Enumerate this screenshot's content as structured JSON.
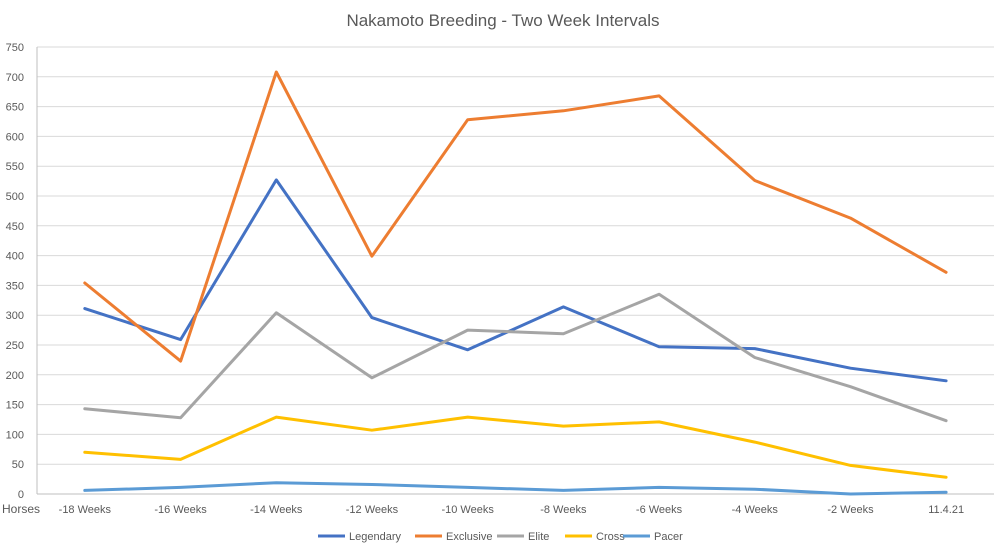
{
  "chart_data": {
    "type": "line",
    "title": "Nakamoto Breeding - Two Week Intervals",
    "xlabel": "Horses",
    "ylabel": "",
    "ylim": [
      0,
      750
    ],
    "yticks": [
      0,
      50,
      100,
      150,
      200,
      250,
      300,
      350,
      400,
      450,
      500,
      550,
      600,
      650,
      700,
      750
    ],
    "grid": true,
    "legend_position": "bottom",
    "categories": [
      "-18 Weeks",
      "-16 Weeks",
      "-14 Weeks",
      "-12 Weeks",
      "-10 Weeks",
      "-8 Weeks",
      "-6 Weeks",
      "-4 Weeks",
      "-2 Weeks",
      "11.4.21"
    ],
    "series": [
      {
        "name": "Legendary",
        "color": "#4472c4",
        "values": [
          311,
          259,
          527,
          296,
          242,
          314,
          247,
          244,
          211,
          190
        ]
      },
      {
        "name": "Exclusive",
        "color": "#ed7d31",
        "values": [
          354,
          223,
          708,
          399,
          628,
          643,
          668,
          526,
          463,
          372
        ]
      },
      {
        "name": "Elite",
        "color": "#a5a5a5",
        "values": [
          143,
          128,
          304,
          195,
          275,
          269,
          335,
          229,
          180,
          123
        ]
      },
      {
        "name": "Cross",
        "color": "#ffc000",
        "values": [
          70,
          58,
          129,
          107,
          129,
          114,
          121,
          87,
          48,
          28
        ]
      },
      {
        "name": "Pacer",
        "color": "#5b9bd5",
        "values": [
          6,
          11,
          19,
          16,
          11,
          6,
          11,
          8,
          0,
          3
        ]
      }
    ]
  }
}
